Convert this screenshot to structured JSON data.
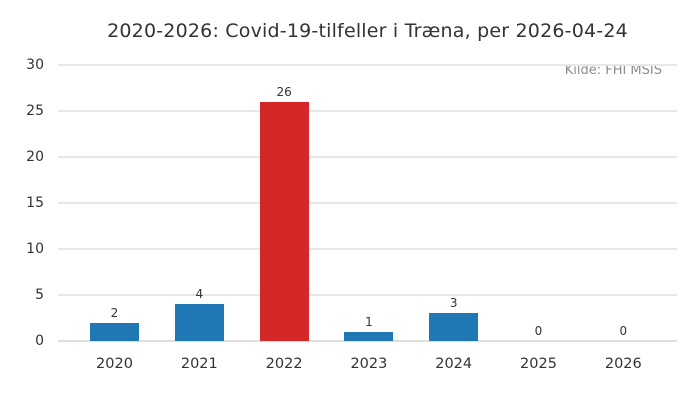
{
  "title": "2020-2026: Covid-19-tilfeller i Træna, per 2026-04-24",
  "source_note": "Kilde: FHI MSIS",
  "chart_data": {
    "type": "bar",
    "title": "2020-2026: Covid-19-tilfeller i Træna, per 2026-04-24",
    "annotation": "Kilde: FHI MSIS",
    "categories": [
      "2020",
      "2021",
      "2022",
      "2023",
      "2024",
      "2025",
      "2026"
    ],
    "values": [
      2,
      4,
      26,
      1,
      3,
      0,
      0
    ],
    "bar_labels": [
      "2",
      "4",
      "26",
      "1",
      "3",
      "0",
      "0"
    ],
    "xlabel": "",
    "ylabel": "",
    "ylim": [
      0,
      30
    ],
    "yticks": [
      0,
      5,
      10,
      15,
      20,
      25,
      30
    ],
    "grid": "horizontal-only",
    "legend": "none",
    "highlighted_category": "2022",
    "colors": {
      "default_bar": "#1f77b4",
      "highlight_bar": "#d62728",
      "grid": "#e7e7e7",
      "text": "#333333",
      "muted_text": "#8c8c8c",
      "background": "#ffffff"
    }
  }
}
